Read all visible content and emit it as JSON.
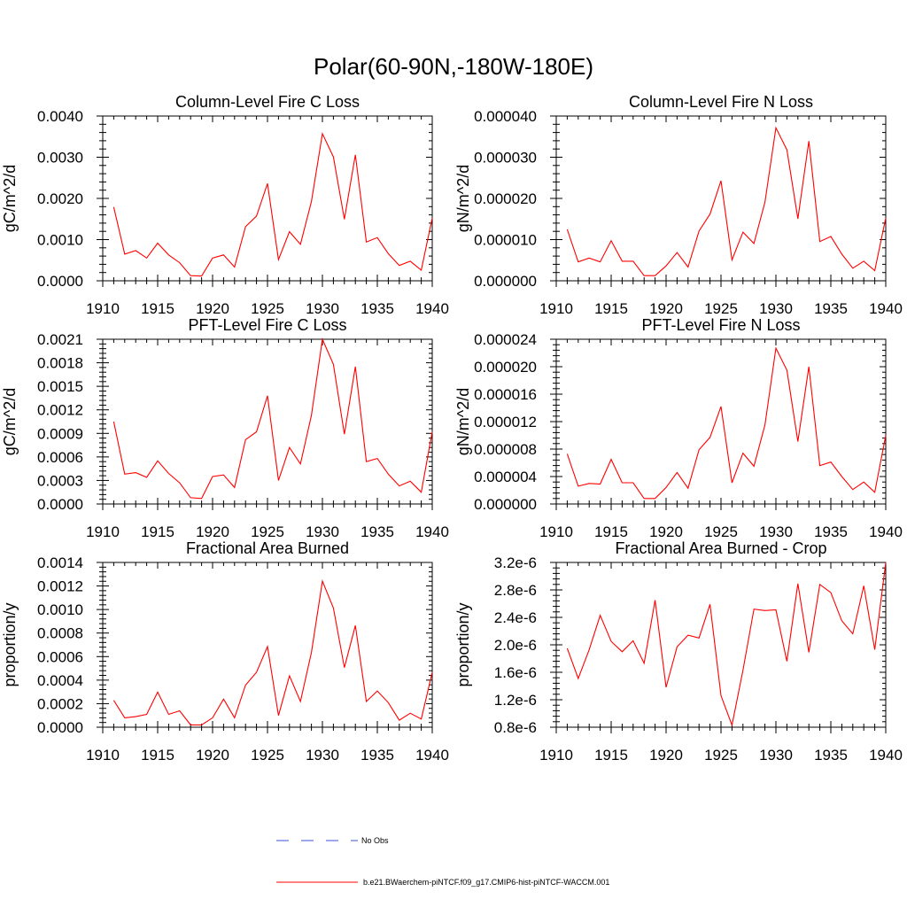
{
  "title": "Polar(60-90N,-180W-180E)",
  "colors": {
    "model_line": "#ff0000",
    "obs_line": "#3b4fd8",
    "axis": "#000000"
  },
  "legend": {
    "obs_label": "No Obs",
    "model_label": "b.e21.BWaerchem-piNTCF.f09_g17.CMIP6-hist-piNTCF-WACCM.001"
  },
  "chart_data": [
    {
      "type": "line",
      "title": "Column-Level Fire C Loss",
      "ylabel": "gC/m^2/d",
      "xlim": [
        1910,
        1940
      ],
      "ylim": [
        0,
        0.0042
      ],
      "x_ticks": [
        "1910",
        "1915",
        "1920",
        "1925",
        "1930",
        "1935",
        "1940"
      ],
      "y_ticks": [
        "0.0000",
        "0.0010",
        "0.0020",
        "0.0030",
        "0.0040"
      ],
      "x": [
        1911,
        1912,
        1913,
        1914,
        1915,
        1916,
        1917,
        1918,
        1919,
        1920,
        1921,
        1922,
        1923,
        1924,
        1925,
        1926,
        1927,
        1928,
        1929,
        1930,
        1931,
        1932,
        1933,
        1934,
        1935,
        1936,
        1937,
        1938,
        1939,
        1940
      ],
      "values": [
        0.00188,
        0.00068,
        0.00077,
        0.00058,
        0.00096,
        0.00066,
        0.00046,
        0.00013,
        0.00012,
        0.00058,
        0.00066,
        0.00035,
        0.00138,
        0.00165,
        0.00248,
        0.00054,
        0.00125,
        0.00093,
        0.00202,
        0.00375,
        0.00316,
        0.00157,
        0.00321,
        0.00099,
        0.0011,
        0.00069,
        0.00039,
        0.0005,
        0.00027,
        0.0016
      ]
    },
    {
      "type": "line",
      "title": "Column-Level Fire N Loss",
      "ylabel": "gN/m^2/d",
      "xlim": [
        1910,
        1940
      ],
      "ylim": [
        0,
        4.2e-05
      ],
      "x_ticks": [
        "1910",
        "1915",
        "1920",
        "1925",
        "1930",
        "1935",
        "1940"
      ],
      "y_ticks": [
        "0.000000",
        "0.000010",
        "0.000020",
        "0.000030",
        "0.000040"
      ],
      "x": [
        1911,
        1912,
        1913,
        1914,
        1915,
        1916,
        1917,
        1918,
        1919,
        1920,
        1921,
        1922,
        1923,
        1924,
        1925,
        1926,
        1927,
        1928,
        1929,
        1930,
        1931,
        1932,
        1933,
        1934,
        1935,
        1936,
        1937,
        1938,
        1939,
        1940
      ],
      "values": [
        1.31e-05,
        4.8e-06,
        5.8e-06,
        4.8e-06,
        1.02e-05,
        5e-06,
        5e-06,
        1.3e-06,
        1.3e-06,
        3.8e-06,
        7.2e-06,
        3.5e-06,
        1.27e-05,
        1.7e-05,
        2.55e-05,
        5.3e-06,
        1.24e-05,
        9.5e-06,
        2e-05,
        3.9e-05,
        3.34e-05,
        1.58e-05,
        3.56e-05,
        1e-05,
        1.13e-05,
        6.8e-06,
        3.2e-06,
        5e-06,
        2.6e-06,
        1.6e-05
      ]
    },
    {
      "type": "line",
      "title": "PFT-Level Fire C Loss",
      "ylabel": "gC/m^2/d",
      "xlim": [
        1910,
        1940
      ],
      "ylim": [
        0,
        0.0021
      ],
      "x_ticks": [
        "1910",
        "1915",
        "1920",
        "1925",
        "1930",
        "1935",
        "1940"
      ],
      "y_ticks": [
        "0.0000",
        "0.0003",
        "0.0006",
        "0.0009",
        "0.0012",
        "0.0015",
        "0.0018",
        "0.0021"
      ],
      "x": [
        1911,
        1912,
        1913,
        1914,
        1915,
        1916,
        1917,
        1918,
        1919,
        1920,
        1921,
        1922,
        1923,
        1924,
        1925,
        1926,
        1927,
        1928,
        1929,
        1930,
        1931,
        1932,
        1933,
        1934,
        1935,
        1936,
        1937,
        1938,
        1939,
        1940
      ],
      "values": [
        0.00105,
        0.00038,
        0.0004,
        0.00034,
        0.00055,
        0.00039,
        0.00027,
        8e-05,
        7e-05,
        0.00035,
        0.00037,
        0.00021,
        0.00082,
        0.00092,
        0.00138,
        0.0003,
        0.00072,
        0.00051,
        0.00113,
        0.0021,
        0.00178,
        0.00089,
        0.00175,
        0.00054,
        0.00058,
        0.00038,
        0.00023,
        0.00029,
        0.00015,
        0.00092
      ]
    },
    {
      "type": "line",
      "title": "PFT-Level Fire N Loss",
      "ylabel": "gN/m^2/d",
      "xlim": [
        1910,
        1940
      ],
      "ylim": [
        0,
        2.4e-05
      ],
      "x_ticks": [
        "1910",
        "1915",
        "1920",
        "1925",
        "1930",
        "1935",
        "1940"
      ],
      "y_ticks": [
        "0.000000",
        "0.000004",
        "0.000008",
        "0.000012",
        "0.000016",
        "0.000020",
        "0.000024"
      ],
      "x": [
        1911,
        1912,
        1913,
        1914,
        1915,
        1916,
        1917,
        1918,
        1919,
        1920,
        1921,
        1922,
        1923,
        1924,
        1925,
        1926,
        1927,
        1928,
        1929,
        1930,
        1931,
        1932,
        1933,
        1934,
        1935,
        1936,
        1937,
        1938,
        1939,
        1940
      ],
      "values": [
        7.3e-06,
        2.6e-06,
        3e-06,
        2.9e-06,
        6.5e-06,
        3.1e-06,
        3.1e-06,
        8e-07,
        8e-07,
        2.4e-06,
        4.6e-06,
        2.3e-06,
        7.9e-06,
        9.7e-06,
        1.42e-05,
        3.1e-06,
        7.4e-06,
        5.5e-06,
        1.15e-05,
        2.27e-05,
        1.95e-05,
        9.1e-06,
        2e-05,
        5.6e-06,
        6.1e-06,
        4e-06,
        2.1e-06,
        3.2e-06,
        1.7e-06,
        1e-05
      ]
    },
    {
      "type": "line",
      "title": "Fractional Area Burned",
      "ylabel": "proportion/y",
      "xlim": [
        1910,
        1940
      ],
      "ylim": [
        0,
        0.00141
      ],
      "x_ticks": [
        "1910",
        "1915",
        "1920",
        "1925",
        "1930",
        "1935",
        "1940"
      ],
      "y_ticks": [
        "0.0000",
        "0.0002",
        "0.0004",
        "0.0006",
        "0.0008",
        "0.0010",
        "0.0012",
        "0.0014"
      ],
      "x": [
        1911,
        1912,
        1913,
        1914,
        1915,
        1916,
        1917,
        1918,
        1919,
        1920,
        1921,
        1922,
        1923,
        1924,
        1925,
        1926,
        1927,
        1928,
        1929,
        1930,
        1931,
        1932,
        1933,
        1934,
        1935,
        1936,
        1937,
        1938,
        1939,
        1940
      ],
      "values": [
        0.00023,
        8e-05,
        9e-05,
        0.00011,
        0.0003,
        0.00011,
        0.00014,
        2e-05,
        2e-05,
        8e-05,
        0.00024,
        8e-05,
        0.00036,
        0.00047,
        0.00069,
        0.0001,
        0.00044,
        0.00022,
        0.00064,
        0.00125,
        0.00102,
        0.00051,
        0.00087,
        0.00022,
        0.00031,
        0.00021,
        6e-05,
        0.00012,
        7e-05,
        0.00047
      ]
    },
    {
      "type": "line",
      "title": "Fractional Area Burned - Crop",
      "ylabel": "proportion/y",
      "xlim": [
        1910,
        1940
      ],
      "ylim": [
        8e-07,
        3.2e-06
      ],
      "x_ticks": [
        "1910",
        "1915",
        "1920",
        "1925",
        "1930",
        "1935",
        "1940"
      ],
      "y_ticks": [
        "0.8e-6",
        "1.2e-6",
        "1.6e-6",
        "2.0e-6",
        "2.4e-6",
        "2.8e-6",
        "3.2e-6"
      ],
      "x": [
        1911,
        1912,
        1913,
        1914,
        1915,
        1916,
        1917,
        1918,
        1919,
        1920,
        1921,
        1922,
        1923,
        1924,
        1925,
        1926,
        1927,
        1928,
        1929,
        1930,
        1931,
        1932,
        1933,
        1934,
        1935,
        1936,
        1937,
        1938,
        1939,
        1940
      ],
      "values": [
        1.95e-06,
        1.51e-06,
        1.93e-06,
        2.43e-06,
        2.05e-06,
        1.9e-06,
        2.06e-06,
        1.73e-06,
        2.65e-06,
        1.38e-06,
        1.97e-06,
        2.14e-06,
        2.1e-06,
        2.59e-06,
        1.26e-06,
        8.3e-07,
        1.63e-06,
        2.52e-06,
        2.5e-06,
        2.51e-06,
        1.76e-06,
        2.89e-06,
        1.89e-06,
        2.88e-06,
        2.76e-06,
        2.35e-06,
        2.16e-06,
        2.86e-06,
        1.93e-06,
        3.2e-06
      ]
    }
  ]
}
